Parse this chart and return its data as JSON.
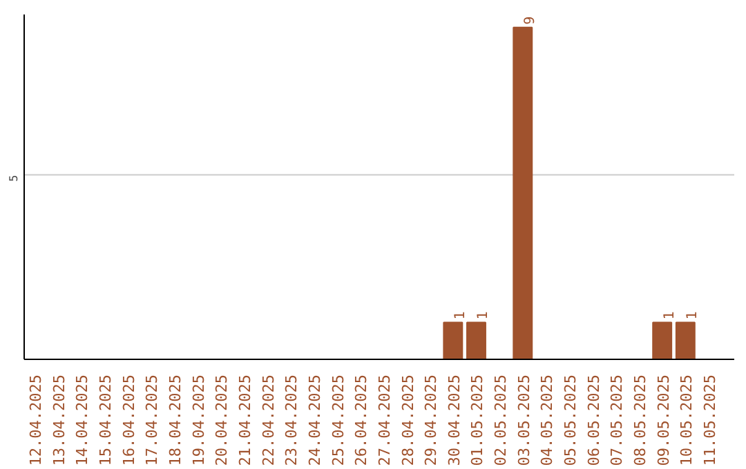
{
  "chart_data": {
    "type": "bar",
    "ylim": [
      0,
      9.35
    ],
    "categories": [
      "12.04.2025",
      "13.04.2025",
      "14.04.2025",
      "15.04.2025",
      "16.04.2025",
      "17.04.2025",
      "18.04.2025",
      "19.04.2025",
      "20.04.2025",
      "21.04.2025",
      "22.04.2025",
      "23.04.2025",
      "24.04.2025",
      "25.04.2025",
      "26.04.2025",
      "27.04.2025",
      "28.04.2025",
      "29.04.2025",
      "30.04.2025",
      "01.05.2025",
      "02.05.2025",
      "03.05.2025",
      "04.05.2025",
      "05.05.2025",
      "06.05.2025",
      "07.05.2025",
      "08.05.2025",
      "09.05.2025",
      "10.05.2025",
      "11.05.2025"
    ],
    "values": [
      null,
      null,
      null,
      null,
      null,
      null,
      null,
      null,
      null,
      null,
      null,
      null,
      null,
      null,
      null,
      null,
      null,
      null,
      1,
      1,
      null,
      9,
      null,
      null,
      null,
      null,
      null,
      1,
      1,
      null
    ],
    "value_labels": [
      null,
      null,
      null,
      null,
      null,
      null,
      null,
      null,
      null,
      null,
      null,
      null,
      null,
      null,
      null,
      null,
      null,
      null,
      "1",
      "1",
      null,
      "9",
      null,
      null,
      null,
      null,
      null,
      "1",
      "1",
      null
    ],
    "color": "#a0522d",
    "ref_lines": [
      {
        "axis": "y",
        "value": 5,
        "label": "5",
        "color": "#cccccc"
      }
    ]
  }
}
